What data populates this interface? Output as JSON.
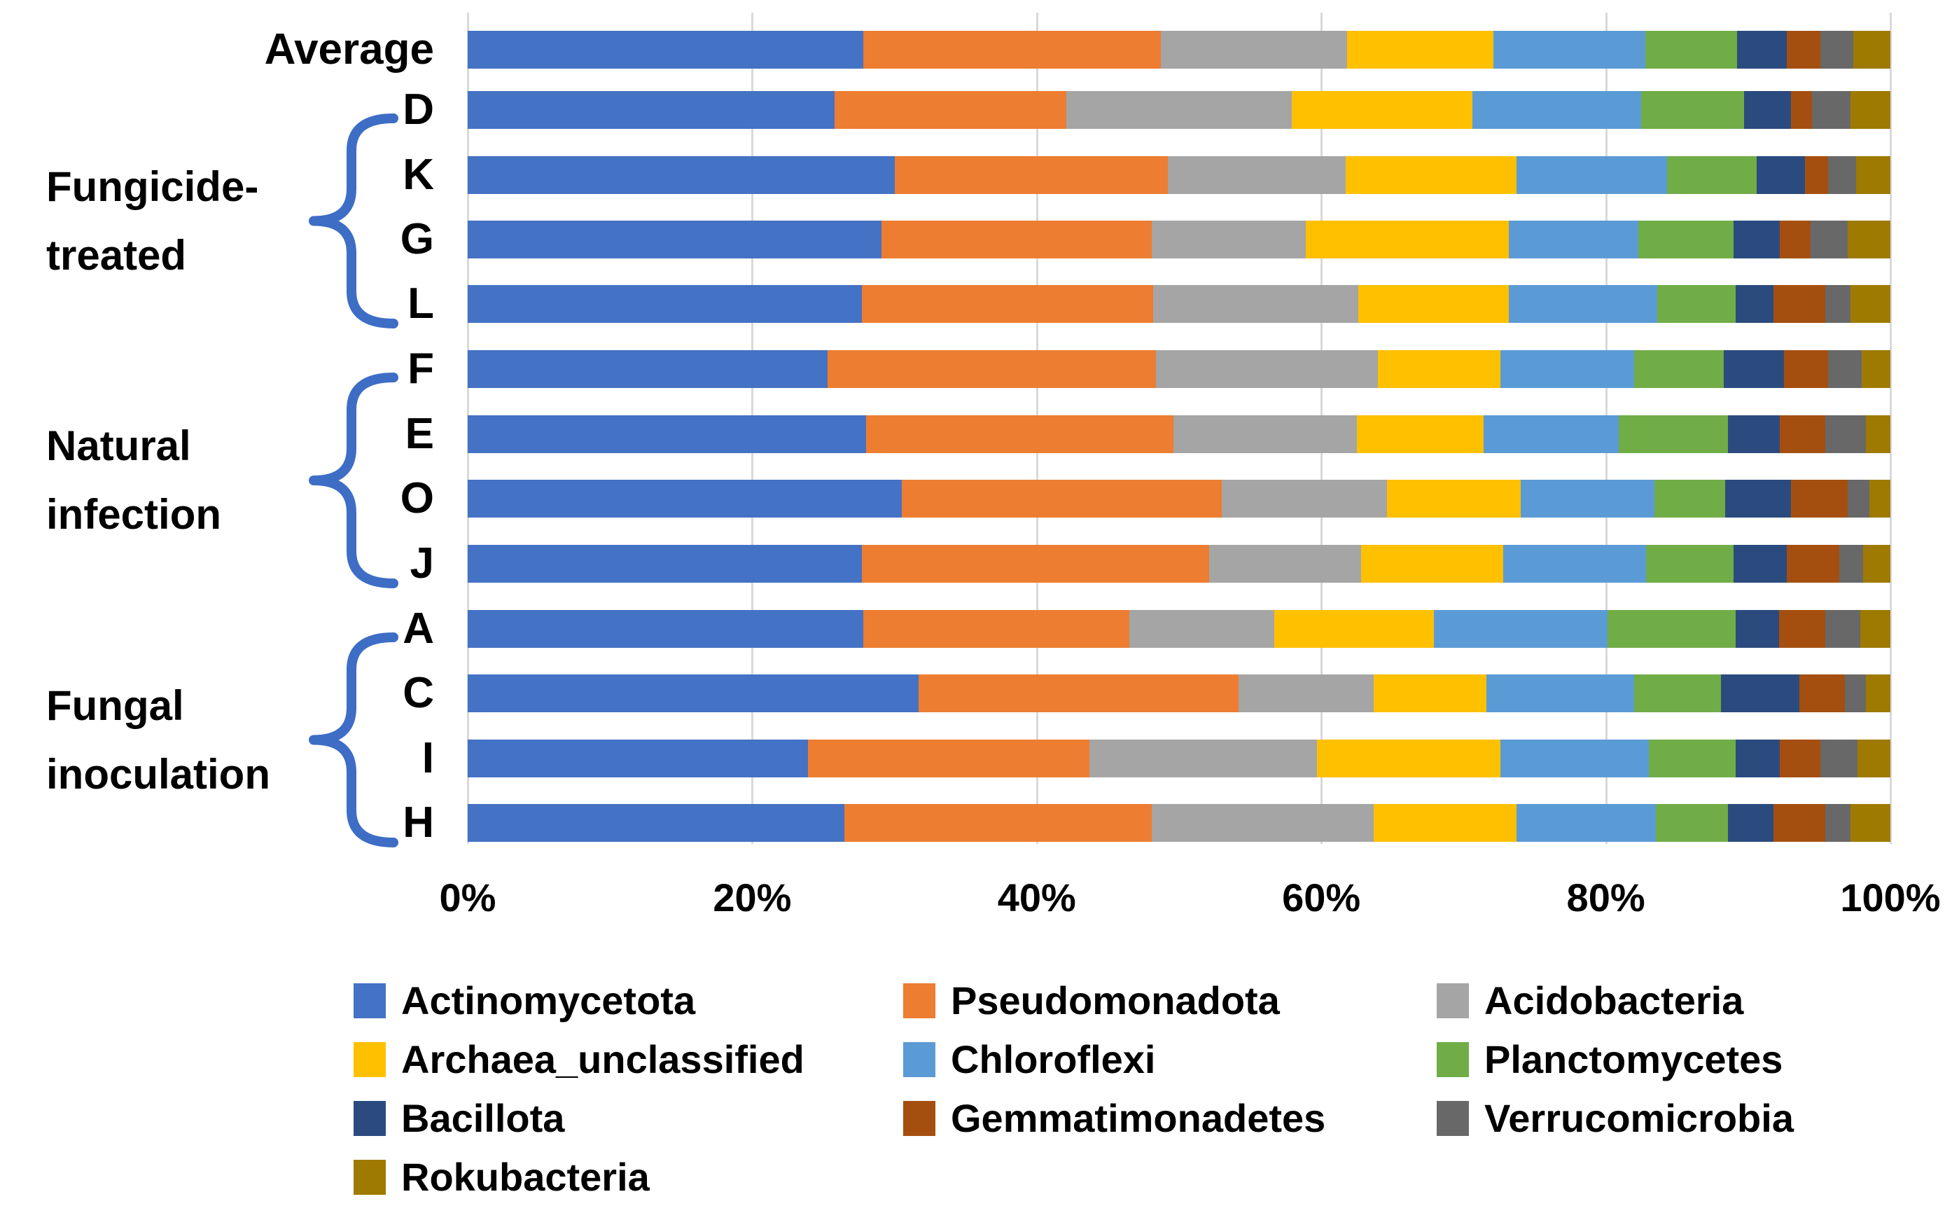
{
  "chart_data": {
    "type": "bar",
    "orientation": "horizontal-stacked",
    "title": "",
    "xlabel": "",
    "ylabel": "",
    "xlim": [
      0,
      100
    ],
    "x_ticks": [
      "0%",
      "20%",
      "40%",
      "60%",
      "80%",
      "100%"
    ],
    "grid": "vertical-major-20pct",
    "legend_position": "bottom",
    "series": [
      {
        "name": "Actinomycetota",
        "color": "#4472C4"
      },
      {
        "name": "Pseudomonadota",
        "color": "#ED7D31"
      },
      {
        "name": "Acidobacteria",
        "color": "#A5A5A5"
      },
      {
        "name": "Archaea_unclassified",
        "color": "#FFC000"
      },
      {
        "name": "Chloroflexi",
        "color": "#5B9BD5"
      },
      {
        "name": "Planctomycetes",
        "color": "#70AD47"
      },
      {
        "name": "Bacillota",
        "color": "#2B4B7E"
      },
      {
        "name": "Gemmatimonadetes",
        "color": "#A44F10"
      },
      {
        "name": "Verrucomicrobia",
        "color": "#686868"
      },
      {
        "name": "Rokubacteria",
        "color": "#9E7A00"
      }
    ],
    "rows": [
      {
        "label": "Average",
        "values": [
          27.8,
          20.9,
          13.1,
          10.3,
          10.7,
          6.4,
          3.5,
          2.4,
          2.3,
          2.6
        ]
      },
      {
        "label": "D",
        "values": [
          25.8,
          16.3,
          15.8,
          12.7,
          11.9,
          7.2,
          3.3,
          1.5,
          2.7,
          2.8
        ]
      },
      {
        "label": "K",
        "values": [
          30.0,
          19.2,
          12.5,
          12.0,
          10.6,
          6.3,
          3.4,
          1.6,
          2.0,
          2.4
        ]
      },
      {
        "label": "G",
        "values": [
          29.1,
          19.0,
          10.8,
          14.3,
          9.1,
          6.7,
          3.2,
          2.2,
          2.6,
          3.0
        ]
      },
      {
        "label": "L",
        "values": [
          27.7,
          20.5,
          14.4,
          10.6,
          10.4,
          5.5,
          2.7,
          3.6,
          1.8,
          2.8
        ]
      },
      {
        "label": "F",
        "values": [
          25.3,
          23.1,
          15.6,
          8.6,
          9.4,
          6.3,
          4.2,
          3.1,
          2.4,
          2.0
        ]
      },
      {
        "label": "E",
        "values": [
          28.0,
          21.6,
          12.9,
          8.9,
          9.5,
          7.7,
          3.6,
          3.2,
          2.9,
          1.7
        ]
      },
      {
        "label": "O",
        "values": [
          30.5,
          22.5,
          11.6,
          9.4,
          9.4,
          5.0,
          4.6,
          4.0,
          1.5,
          1.5
        ]
      },
      {
        "label": "J",
        "values": [
          27.7,
          24.4,
          10.7,
          10.0,
          10.0,
          6.2,
          3.7,
          3.7,
          1.7,
          1.9
        ]
      },
      {
        "label": "A",
        "values": [
          27.8,
          18.7,
          10.2,
          11.2,
          12.2,
          9.0,
          3.1,
          3.2,
          2.5,
          2.1
        ]
      },
      {
        "label": "C",
        "values": [
          31.7,
          22.5,
          9.5,
          7.9,
          10.4,
          6.1,
          5.5,
          3.2,
          1.5,
          1.7
        ]
      },
      {
        "label": "I",
        "values": [
          23.9,
          19.8,
          16.0,
          12.9,
          10.4,
          6.1,
          3.1,
          2.9,
          2.6,
          2.3
        ]
      },
      {
        "label": "H",
        "values": [
          26.5,
          21.6,
          15.6,
          10.0,
          9.8,
          5.1,
          3.2,
          3.6,
          1.8,
          2.8
        ]
      }
    ],
    "groups": [
      {
        "label_lines": [
          "Fungicide-",
          "treated"
        ],
        "first_row": 1,
        "last_row": 4
      },
      {
        "label_lines": [
          "Natural",
          "infection"
        ],
        "first_row": 5,
        "last_row": 8
      },
      {
        "label_lines": [
          "Fungal",
          "inoculation"
        ],
        "first_row": 9,
        "last_row": 12
      }
    ],
    "colors": {
      "brace": "#3E6DC5",
      "gridline": "#D9D9D9",
      "text": "#000000",
      "background": "#FFFFFF"
    }
  }
}
